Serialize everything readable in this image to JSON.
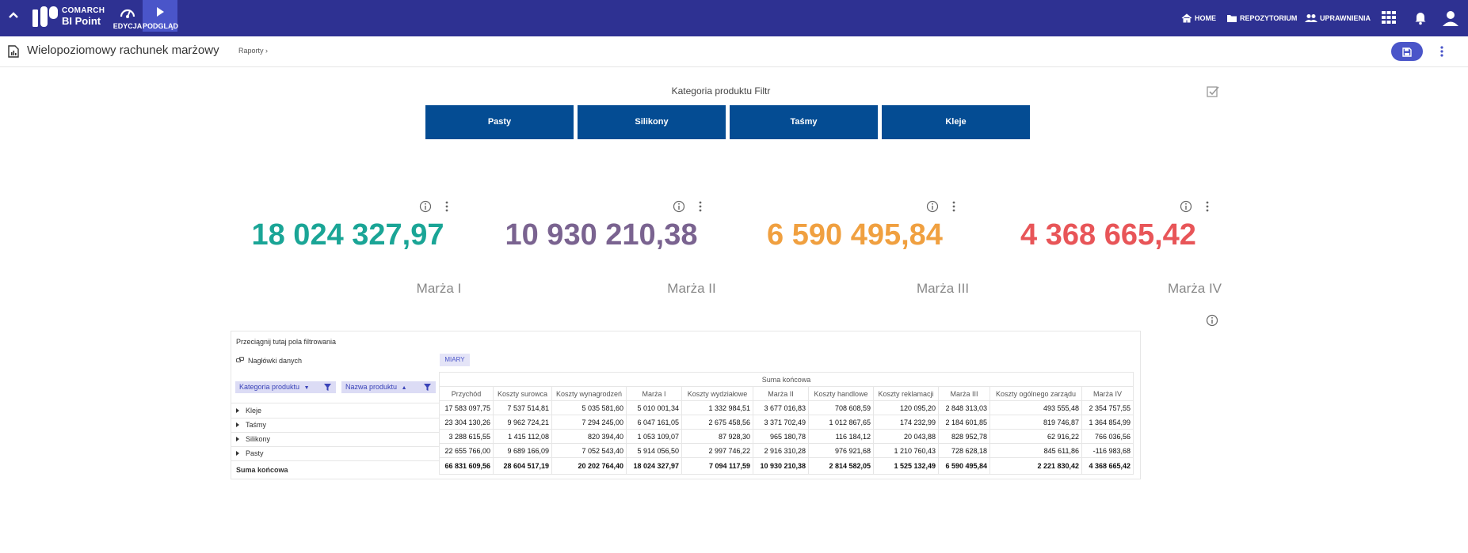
{
  "brand": {
    "line1": "COMARCH",
    "line2": "BI Point",
    "color": "#2e3192"
  },
  "modes": [
    {
      "label": "EDYCJA",
      "icon": "gauge-icon"
    },
    {
      "label": "PODGLĄD",
      "icon": "play-icon",
      "active": true
    }
  ],
  "nav": {
    "home": "HOME",
    "repo": "REPOZYTORIUM",
    "perms": "UPRAWNIENIA"
  },
  "page": {
    "title": "Wielopoziomowy rachunek marżowy",
    "breadcrumb": "Raporty ›"
  },
  "filter": {
    "title": "Kategoria produktu Filtr",
    "options": [
      "Pasty",
      "Silikony",
      "Taśmy",
      "Kleje"
    ],
    "button_color": "#044c93"
  },
  "kpis": [
    {
      "value": "18 024 327,97",
      "label": "Marża I",
      "color": "#1aa596"
    },
    {
      "value": "10 930 210,38",
      "label": "Marża II",
      "color": "#7a6390"
    },
    {
      "value": "6 590 495,84",
      "label": "Marża III",
      "color": "#f0a040"
    },
    {
      "value": "4 368 665,42",
      "label": "Marża IV",
      "color": "#e85558"
    }
  ],
  "pivot": {
    "drop_text": "Przeciągnij tutaj pola filtrowania",
    "headers_label": "Nagłówki danych",
    "measures_chip": "MIARY",
    "row_fields": [
      "Kategoria produktu",
      "Nazwa produktu"
    ],
    "grand_total_header": "Suma końcowa",
    "columns": [
      "Przychód",
      "Koszty surowca",
      "Koszty wynagrodzeń",
      "Marża I",
      "Koszty wydziałowe",
      "Marża II",
      "Koszty handlowe",
      "Koszty reklamacji",
      "Marża III",
      "Koszty ogólnego zarządu",
      "Marża IV"
    ],
    "rows": [
      {
        "label": "Kleje",
        "values": [
          "17 583 097,75",
          "7 537 514,81",
          "5 035 581,60",
          "5 010 001,34",
          "1 332 984,51",
          "3 677 016,83",
          "708 608,59",
          "120 095,20",
          "2 848 313,03",
          "493 555,48",
          "2 354 757,55"
        ]
      },
      {
        "label": "Taśmy",
        "values": [
          "23 304 130,26",
          "9 962 724,21",
          "7 294 245,00",
          "6 047 161,05",
          "2 675 458,56",
          "3 371 702,49",
          "1 012 867,65",
          "174 232,99",
          "2 184 601,85",
          "819 746,87",
          "1 364 854,99"
        ]
      },
      {
        "label": "Silikony",
        "values": [
          "3 288 615,55",
          "1 415 112,08",
          "820 394,40",
          "1 053 109,07",
          "87 928,30",
          "965 180,78",
          "116 184,12",
          "20 043,88",
          "828 952,78",
          "62 916,22",
          "766 036,56"
        ]
      },
      {
        "label": "Pasty",
        "values": [
          "22 655 766,00",
          "9 689 166,09",
          "7 052 543,40",
          "5 914 056,50",
          "2 997 746,22",
          "2 916 310,28",
          "976 921,68",
          "1 210 760,43",
          "728 628,18",
          "845 611,86",
          "-116 983,68"
        ]
      }
    ],
    "total": {
      "label": "Suma końcowa",
      "values": [
        "66 831 609,56",
        "28 604 517,19",
        "20 202 764,40",
        "18 024 327,97",
        "7 094 117,59",
        "10 930 210,38",
        "2 814 582,05",
        "1 525 132,49",
        "6 590 495,84",
        "2 221 830,42",
        "4 368 665,42"
      ]
    }
  }
}
